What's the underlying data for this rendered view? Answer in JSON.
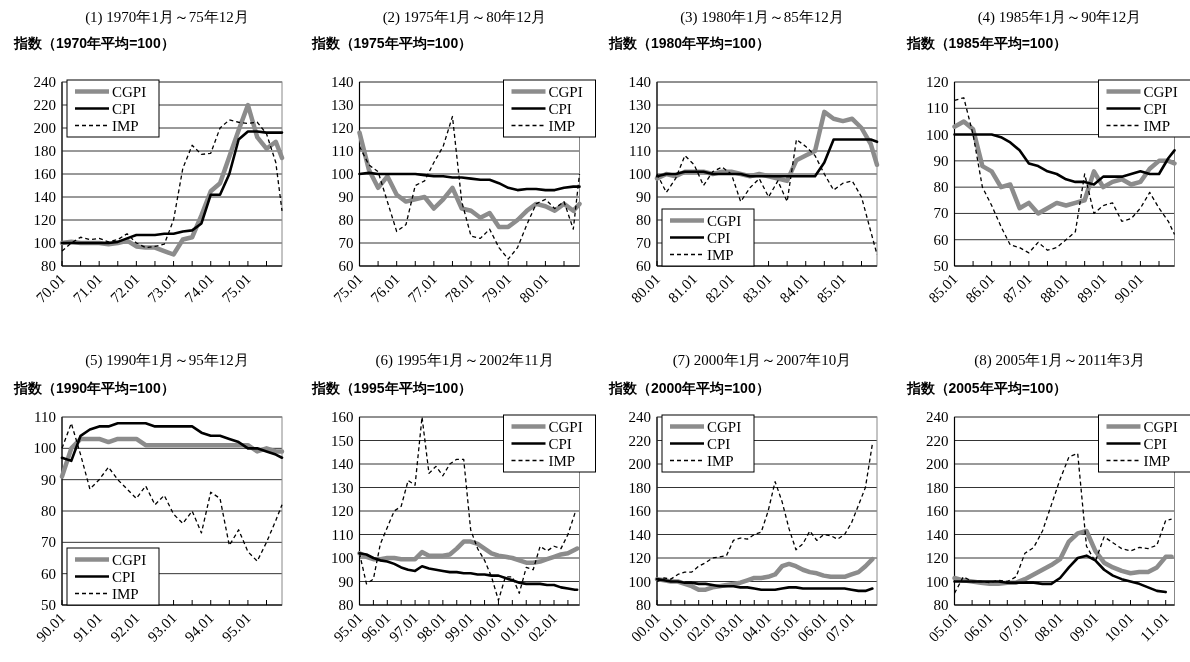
{
  "chart_data": [
    {
      "type": "line",
      "title": "(1) 1970年1月～75年12月",
      "ylabel": "指数（1970年平均=100）",
      "legend": "top left",
      "grid": "y",
      "x": [
        "1970-01",
        "1970-04",
        "1970-07",
        "1970-10",
        "1971-01",
        "1971-04",
        "1971-07",
        "1971-10",
        "1972-01",
        "1972-04",
        "1972-07",
        "1972-10",
        "1973-01",
        "1973-04",
        "1973-07",
        "1973-10",
        "1974-01",
        "1974-04",
        "1974-07",
        "1974-10",
        "1975-01",
        "1975-04",
        "1975-07",
        "1975-10",
        "1975-12"
      ],
      "xlim": [
        "1970-01",
        "1975-12"
      ],
      "xticks": [
        {
          "value": "1970-01",
          "label": "70.01"
        },
        {
          "value": "1970-07",
          "label": null
        },
        {
          "value": "1971-01",
          "label": "71.01"
        },
        {
          "value": "1971-07",
          "label": null
        },
        {
          "value": "1972-01",
          "label": "72.01"
        },
        {
          "value": "1972-07",
          "label": null
        },
        {
          "value": "1973-01",
          "label": "73.01"
        },
        {
          "value": "1973-07",
          "label": null
        },
        {
          "value": "1974-01",
          "label": "74.01"
        },
        {
          "value": "1974-07",
          "label": null
        },
        {
          "value": "1975-01",
          "label": "75.01"
        },
        {
          "value": "1975-07",
          "label": null
        }
      ],
      "ylim": [
        80,
        240
      ],
      "yticks": [
        80,
        100,
        120,
        140,
        160,
        180,
        200,
        220,
        240
      ],
      "series": [
        {
          "name": "CGPI",
          "color": "#8c8c8c",
          "line_style": "solid",
          "values": [
            100,
            101,
            100,
            100,
            100,
            99,
            100,
            102,
            97,
            96,
            96,
            93,
            90,
            103,
            105,
            124,
            145,
            152,
            175,
            198,
            220,
            192,
            182,
            188,
            174
          ]
        },
        {
          "name": "CPI",
          "color": "#000000",
          "line_style": "solid",
          "values": [
            100,
            100,
            100,
            100,
            100,
            100,
            101,
            104,
            107,
            107,
            107,
            108,
            108,
            110,
            111,
            117,
            142,
            142,
            160,
            190,
            197,
            197,
            196,
            196,
            196
          ]
        },
        {
          "name": "IMP",
          "color": "#000000",
          "line_style": "dashed",
          "values": [
            93,
            100,
            105,
            103,
            104,
            101,
            103,
            108,
            100,
            96,
            97,
            99,
            120,
            165,
            185,
            177,
            178,
            200,
            207,
            205,
            204,
            205,
            195,
            170,
            128
          ]
        }
      ]
    },
    {
      "type": "line",
      "title": "(2) 1975年1月～80年12月",
      "ylabel": "指数（1975年平均=100）",
      "legend": "top right",
      "grid": "y",
      "x": [
        "1975-01",
        "1975-04",
        "1975-07",
        "1975-10",
        "1976-01",
        "1976-04",
        "1976-07",
        "1976-10",
        "1977-01",
        "1977-04",
        "1977-07",
        "1977-10",
        "1978-01",
        "1978-04",
        "1978-07",
        "1978-10",
        "1979-01",
        "1979-04",
        "1979-07",
        "1979-10",
        "1980-01",
        "1980-04",
        "1980-07",
        "1980-10",
        "1980-12"
      ],
      "xlim": [
        "1975-01",
        "1980-12"
      ],
      "xticks": [
        {
          "value": "1975-01",
          "label": "75.01"
        },
        {
          "value": "1975-07",
          "label": null
        },
        {
          "value": "1976-01",
          "label": "76.01"
        },
        {
          "value": "1976-07",
          "label": null
        },
        {
          "value": "1977-01",
          "label": "77.01"
        },
        {
          "value": "1977-07",
          "label": null
        },
        {
          "value": "1978-01",
          "label": "78.01"
        },
        {
          "value": "1978-07",
          "label": null
        },
        {
          "value": "1979-01",
          "label": "79.01"
        },
        {
          "value": "1979-07",
          "label": null
        },
        {
          "value": "1980-01",
          "label": "80.01"
        },
        {
          "value": "1980-07",
          "label": null
        }
      ],
      "ylim": [
        60,
        140
      ],
      "yticks": [
        60,
        70,
        80,
        90,
        100,
        110,
        120,
        130,
        140
      ],
      "series": [
        {
          "name": "CGPI",
          "color": "#8c8c8c",
          "line_style": "solid",
          "values": [
            118,
            102,
            94,
            99,
            91,
            88,
            89,
            90,
            85,
            89,
            94,
            85,
            84,
            81,
            83,
            77,
            77,
            80,
            84,
            87,
            86,
            84,
            87,
            84,
            87
          ]
        },
        {
          "name": "CPI",
          "color": "#000000",
          "line_style": "solid",
          "values": [
            100,
            100.5,
            100,
            100,
            100,
            100,
            100,
            99.5,
            99,
            99,
            98.5,
            98.5,
            98,
            97.5,
            97.5,
            96,
            94,
            93,
            93.5,
            93.5,
            93,
            93,
            94,
            94.5,
            94.5
          ]
        },
        {
          "name": "IMP",
          "color": "#000000",
          "line_style": "dashed",
          "values": [
            112,
            104,
            101,
            88,
            75,
            78,
            95,
            97,
            105,
            112,
            125,
            88,
            73,
            72,
            76,
            68,
            63,
            68,
            78,
            87,
            89,
            85,
            88,
            76,
            100
          ]
        }
      ]
    },
    {
      "type": "line",
      "title": "(3) 1980年1月～85年12月",
      "ylabel": "指数（1980年平均=100）",
      "legend": "bottom left",
      "grid": "y",
      "x": [
        "1980-01",
        "1980-04",
        "1980-07",
        "1980-10",
        "1981-01",
        "1981-04",
        "1981-07",
        "1981-10",
        "1982-01",
        "1982-04",
        "1982-07",
        "1982-10",
        "1983-01",
        "1983-04",
        "1983-07",
        "1983-10",
        "1984-01",
        "1984-04",
        "1984-07",
        "1984-10",
        "1985-01",
        "1985-04",
        "1985-07",
        "1985-10",
        "1985-12"
      ],
      "xlim": [
        "1980-01",
        "1985-12"
      ],
      "xticks": [
        {
          "value": "1980-01",
          "label": "80.01"
        },
        {
          "value": "1980-07",
          "label": null
        },
        {
          "value": "1981-01",
          "label": "81.01"
        },
        {
          "value": "1981-07",
          "label": null
        },
        {
          "value": "1982-01",
          "label": "82.01"
        },
        {
          "value": "1982-07",
          "label": null
        },
        {
          "value": "1983-01",
          "label": "83.01"
        },
        {
          "value": "1983-07",
          "label": null
        },
        {
          "value": "1984-01",
          "label": "84.01"
        },
        {
          "value": "1984-07",
          "label": null
        },
        {
          "value": "1985-01",
          "label": "85.01"
        },
        {
          "value": "1985-07",
          "label": null
        }
      ],
      "ylim": [
        60,
        140
      ],
      "yticks": [
        60,
        70,
        80,
        90,
        100,
        110,
        120,
        130,
        140
      ],
      "series": [
        {
          "name": "CGPI",
          "color": "#8c8c8c",
          "line_style": "solid",
          "values": [
            98,
            100,
            99,
            101,
            101,
            101,
            100,
            101,
            101,
            100,
            99,
            100,
            99,
            98,
            97,
            106,
            108,
            110,
            127,
            124,
            123,
            124,
            120,
            113,
            104
          ]
        },
        {
          "name": "CPI",
          "color": "#000000",
          "line_style": "solid",
          "values": [
            99,
            100,
            100,
            101,
            101,
            101,
            100,
            100,
            100,
            100,
            99,
            99,
            99,
            99,
            99,
            99,
            99,
            99,
            105,
            115,
            115,
            115,
            115,
            115,
            114
          ]
        },
        {
          "name": "IMP",
          "color": "#000000",
          "line_style": "dashed",
          "values": [
            100,
            92,
            98,
            108,
            104,
            95,
            101,
            103,
            100,
            88,
            94,
            98,
            90,
            97,
            88,
            115,
            112,
            108,
            100,
            93,
            96,
            97,
            90,
            75,
            65
          ]
        }
      ]
    },
    {
      "type": "line",
      "title": "(4) 1985年1月～90年12月",
      "ylabel": "指数（1985年平均=100）",
      "legend": "top right",
      "grid": "y",
      "x": [
        "1985-01",
        "1985-04",
        "1985-07",
        "1985-10",
        "1986-01",
        "1986-04",
        "1986-07",
        "1986-10",
        "1987-01",
        "1987-04",
        "1987-07",
        "1987-10",
        "1988-01",
        "1988-04",
        "1988-07",
        "1988-10",
        "1989-01",
        "1989-04",
        "1989-07",
        "1989-10",
        "1990-01",
        "1990-04",
        "1990-07",
        "1990-10",
        "1990-12"
      ],
      "xlim": [
        "1985-01",
        "1990-12"
      ],
      "xticks": [
        {
          "value": "1985-01",
          "label": "85.01"
        },
        {
          "value": "1985-07",
          "label": null
        },
        {
          "value": "1986-01",
          "label": "86.01"
        },
        {
          "value": "1986-07",
          "label": null
        },
        {
          "value": "1987-01",
          "label": "87.01"
        },
        {
          "value": "1987-07",
          "label": null
        },
        {
          "value": "1988-01",
          "label": "88.01"
        },
        {
          "value": "1988-07",
          "label": null
        },
        {
          "value": "1989-01",
          "label": "89.01"
        },
        {
          "value": "1989-07",
          "label": null
        },
        {
          "value": "1990-01",
          "label": "90.01"
        },
        {
          "value": "1990-07",
          "label": null
        }
      ],
      "ylim": [
        50,
        120
      ],
      "yticks": [
        50,
        60,
        70,
        80,
        90,
        100,
        110,
        120
      ],
      "series": [
        {
          "name": "CGPI",
          "color": "#8c8c8c",
          "line_style": "solid",
          "values": [
            103,
            105,
            102,
            88,
            86,
            80,
            81,
            72,
            74,
            70,
            72,
            74,
            73,
            74,
            75,
            86,
            80,
            82,
            83,
            81,
            82,
            87,
            90,
            90,
            89
          ]
        },
        {
          "name": "CPI",
          "color": "#000000",
          "line_style": "solid",
          "values": [
            100,
            100,
            100,
            100,
            100,
            99,
            97,
            94,
            89,
            88,
            86,
            85,
            83,
            82,
            82,
            81,
            84,
            84,
            84,
            85,
            86,
            85,
            85,
            91,
            94
          ]
        },
        {
          "name": "IMP",
          "color": "#000000",
          "line_style": "dashed",
          "values": [
            113,
            114,
            100,
            80,
            73,
            65,
            58,
            57,
            55,
            59,
            56,
            57,
            60,
            63,
            85,
            70,
            73,
            74,
            67,
            68,
            72,
            78,
            72,
            67,
            62
          ]
        }
      ]
    },
    {
      "type": "line",
      "title": "(5) 1990年1月～95年12月",
      "ylabel": "指数（1990年平均=100）",
      "legend": "bottom left",
      "grid": "y",
      "x": [
        "1990-01",
        "1990-04",
        "1990-07",
        "1990-10",
        "1991-01",
        "1991-04",
        "1991-07",
        "1991-10",
        "1992-01",
        "1992-04",
        "1992-07",
        "1992-10",
        "1993-01",
        "1993-04",
        "1993-07",
        "1993-10",
        "1994-01",
        "1994-04",
        "1994-07",
        "1994-10",
        "1995-01",
        "1995-04",
        "1995-07",
        "1995-10",
        "1995-12"
      ],
      "xlim": [
        "1990-01",
        "1995-12"
      ],
      "xticks": [
        {
          "value": "1990-01",
          "label": "90.01"
        },
        {
          "value": "1990-07",
          "label": null
        },
        {
          "value": "1991-01",
          "label": "91.01"
        },
        {
          "value": "1991-07",
          "label": null
        },
        {
          "value": "1992-01",
          "label": "92.01"
        },
        {
          "value": "1992-07",
          "label": null
        },
        {
          "value": "1993-01",
          "label": "93.01"
        },
        {
          "value": "1993-07",
          "label": null
        },
        {
          "value": "1994-01",
          "label": "94.01"
        },
        {
          "value": "1994-07",
          "label": null
        },
        {
          "value": "1995-01",
          "label": "95.01"
        },
        {
          "value": "1995-07",
          "label": null
        }
      ],
      "ylim": [
        50,
        110
      ],
      "yticks": [
        50,
        60,
        70,
        80,
        90,
        100,
        110
      ],
      "series": [
        {
          "name": "CGPI",
          "color": "#8c8c8c",
          "line_style": "solid",
          "values": [
            91,
            100,
            103,
            103,
            103,
            102,
            103,
            103,
            103,
            101,
            101,
            101,
            101,
            101,
            101,
            101,
            101,
            101,
            101,
            101,
            101,
            99,
            100,
            99,
            99
          ]
        },
        {
          "name": "CPI",
          "color": "#000000",
          "line_style": "solid",
          "values": [
            97,
            96,
            104,
            106,
            107,
            107,
            108,
            108,
            108,
            108,
            107,
            107,
            107,
            107,
            107,
            105,
            104,
            104,
            103,
            102,
            100,
            100,
            99,
            98,
            97
          ]
        },
        {
          "name": "IMP",
          "color": "#000000",
          "line_style": "dashed",
          "values": [
            100,
            108,
            98,
            87,
            90,
            94,
            90,
            87,
            84,
            88,
            82,
            85,
            79,
            76,
            80,
            73,
            86,
            84,
            69,
            74,
            67,
            64,
            70,
            77,
            82
          ]
        }
      ]
    },
    {
      "type": "line",
      "title": "(6) 1995年1月～2002年11月",
      "ylabel": "指数（1995年平均=100）",
      "legend": "top right",
      "grid": "y",
      "x": [
        "1995-01",
        "1995-04",
        "1995-07",
        "1995-10",
        "1996-01",
        "1996-04",
        "1996-07",
        "1996-10",
        "1997-01",
        "1997-04",
        "1997-07",
        "1997-10",
        "1998-01",
        "1998-04",
        "1998-07",
        "1998-10",
        "1999-01",
        "1999-04",
        "1999-07",
        "1999-10",
        "2000-01",
        "2000-04",
        "2000-07",
        "2000-10",
        "2001-01",
        "2001-04",
        "2001-07",
        "2001-10",
        "2002-01",
        "2002-04",
        "2002-07",
        "2002-10",
        "2002-11"
      ],
      "xlim": [
        "1995-01",
        "2002-12"
      ],
      "xticks": [
        {
          "value": "1995-01",
          "label": "95.01"
        },
        {
          "value": "1995-07",
          "label": null
        },
        {
          "value": "1996-01",
          "label": "96.01"
        },
        {
          "value": "1996-07",
          "label": null
        },
        {
          "value": "1997-01",
          "label": "97.01"
        },
        {
          "value": "1997-07",
          "label": null
        },
        {
          "value": "1998-01",
          "label": "98.01"
        },
        {
          "value": "1998-07",
          "label": null
        },
        {
          "value": "1999-01",
          "label": "99.01"
        },
        {
          "value": "1999-07",
          "label": null
        },
        {
          "value": "2000-01",
          "label": "00.01"
        },
        {
          "value": "2000-07",
          "label": null
        },
        {
          "value": "2001-01",
          "label": "01.01"
        },
        {
          "value": "2001-07",
          "label": null
        },
        {
          "value": "2002-01",
          "label": "02.01"
        },
        {
          "value": "2002-07",
          "label": null
        }
      ],
      "ylim": [
        80,
        160
      ],
      "yticks": [
        80,
        90,
        100,
        110,
        120,
        130,
        140,
        150,
        160
      ],
      "series": [
        {
          "name": "CGPI",
          "color": "#8c8c8c",
          "line_style": "solid",
          "values": [
            102,
            100.5,
            99.5,
            99.5,
            100,
            100,
            99.5,
            99.5,
            99.5,
            102.5,
            101,
            101,
            101,
            101.5,
            104,
            107,
            107,
            106,
            104,
            102,
            101,
            100.5,
            100,
            99,
            98,
            98,
            98.5,
            99.5,
            100.5,
            101.5,
            102,
            103.5,
            104
          ]
        },
        {
          "name": "CPI",
          "color": "#000000",
          "line_style": "solid",
          "values": [
            102,
            101.5,
            100,
            99,
            98.5,
            97.5,
            96,
            95,
            94.5,
            96.5,
            95.5,
            95,
            94.5,
            94,
            94,
            93.5,
            93.5,
            93,
            93,
            92.5,
            92.5,
            91.5,
            90.5,
            89.5,
            89,
            89,
            89,
            88.5,
            88.5,
            87.5,
            87,
            86.5,
            86.5
          ]
        },
        {
          "name": "IMP",
          "color": "#000000",
          "line_style": "dashed",
          "values": [
            102,
            89,
            91,
            106,
            113,
            120,
            122,
            133,
            131,
            160,
            136,
            139,
            135,
            140,
            142,
            142,
            112,
            104,
            99,
            92,
            82,
            92,
            92,
            85,
            96,
            95,
            105,
            103,
            105,
            104,
            110,
            119,
            118
          ]
        }
      ]
    },
    {
      "type": "line",
      "title": "(7) 2000年1月～2007年10月",
      "ylabel": "指数（2000年平均=100）",
      "legend": "top left",
      "grid": "y",
      "x": [
        "2000-01",
        "2000-04",
        "2000-07",
        "2000-10",
        "2001-01",
        "2001-04",
        "2001-07",
        "2001-10",
        "2002-01",
        "2002-04",
        "2002-07",
        "2002-10",
        "2003-01",
        "2003-04",
        "2003-07",
        "2003-10",
        "2004-01",
        "2004-04",
        "2004-07",
        "2004-10",
        "2005-01",
        "2005-04",
        "2005-07",
        "2005-10",
        "2006-01",
        "2006-04",
        "2006-07",
        "2006-10",
        "2007-01",
        "2007-04",
        "2007-07",
        "2007-10"
      ],
      "xlim": [
        "2000-01",
        "2007-12"
      ],
      "xticks": [
        {
          "value": "2000-01",
          "label": "00.01"
        },
        {
          "value": "2000-07",
          "label": null
        },
        {
          "value": "2001-01",
          "label": "01.01"
        },
        {
          "value": "2001-07",
          "label": null
        },
        {
          "value": "2002-01",
          "label": "02.01"
        },
        {
          "value": "2002-07",
          "label": null
        },
        {
          "value": "2003-01",
          "label": "03.01"
        },
        {
          "value": "2003-07",
          "label": null
        },
        {
          "value": "2004-01",
          "label": "04.01"
        },
        {
          "value": "2004-07",
          "label": null
        },
        {
          "value": "2005-01",
          "label": "05.01"
        },
        {
          "value": "2005-07",
          "label": null
        },
        {
          "value": "2006-01",
          "label": "06.01"
        },
        {
          "value": "2006-07",
          "label": null
        },
        {
          "value": "2007-01",
          "label": "07.01"
        },
        {
          "value": "2007-07",
          "label": null
        }
      ],
      "ylim": [
        80,
        240
      ],
      "yticks": [
        80,
        100,
        120,
        140,
        160,
        180,
        200,
        220,
        240
      ],
      "series": [
        {
          "name": "CGPI",
          "color": "#8c8c8c",
          "line_style": "solid",
          "values": [
            102,
            101,
            100,
            100,
            98,
            96,
            93,
            93,
            95,
            96,
            97,
            98,
            99,
            101,
            103,
            103,
            104,
            106,
            113,
            115,
            113,
            110,
            108,
            107,
            105,
            104,
            104,
            104,
            106,
            108,
            113,
            119
          ]
        },
        {
          "name": "CPI",
          "color": "#000000",
          "line_style": "solid",
          "values": [
            102,
            101,
            100,
            100,
            99,
            99,
            98,
            98,
            97,
            96,
            96,
            96,
            95,
            95,
            94,
            93,
            93,
            93,
            94,
            95,
            95,
            94,
            94,
            94,
            94,
            94,
            94,
            94,
            93,
            92,
            92,
            94
          ]
        },
        {
          "name": "IMP",
          "color": "#000000",
          "line_style": "dashed",
          "values": [
            100,
            103,
            102,
            106,
            108,
            108,
            113,
            116,
            120,
            121,
            122,
            135,
            137,
            136,
            140,
            142,
            160,
            185,
            168,
            145,
            127,
            132,
            143,
            135,
            140,
            139,
            136,
            140,
            150,
            165,
            180,
            217
          ]
        }
      ]
    },
    {
      "type": "line",
      "title": "(8) 2005年1月～2011年3月",
      "ylabel": "指数（2005年平均=100）",
      "legend": "top right",
      "grid": "y",
      "x": [
        "2005-01",
        "2005-04",
        "2005-07",
        "2005-10",
        "2006-01",
        "2006-04",
        "2006-07",
        "2006-10",
        "2007-01",
        "2007-04",
        "2007-07",
        "2007-10",
        "2008-01",
        "2008-04",
        "2008-07",
        "2008-10",
        "2009-01",
        "2009-04",
        "2009-07",
        "2009-10",
        "2010-01",
        "2010-04",
        "2010-07",
        "2010-10",
        "2011-01",
        "2011-03"
      ],
      "xlim": [
        "2005-01",
        "2011-04"
      ],
      "xticks": [
        {
          "value": "2005-01",
          "label": "05.01"
        },
        {
          "value": "2005-07",
          "label": null
        },
        {
          "value": "2006-01",
          "label": "06.01"
        },
        {
          "value": "2006-07",
          "label": null
        },
        {
          "value": "2007-01",
          "label": "07.01"
        },
        {
          "value": "2007-07",
          "label": null
        },
        {
          "value": "2008-01",
          "label": "08.01"
        },
        {
          "value": "2008-07",
          "label": null
        },
        {
          "value": "2009-01",
          "label": "09.01"
        },
        {
          "value": "2009-07",
          "label": null
        },
        {
          "value": "2010-01",
          "label": "10.01"
        },
        {
          "value": "2010-07",
          "label": null
        },
        {
          "value": "2011-01",
          "label": "11.01"
        }
      ],
      "ylim": [
        80,
        240
      ],
      "yticks": [
        80,
        100,
        120,
        140,
        160,
        180,
        200,
        220,
        240
      ],
      "series": [
        {
          "name": "CGPI",
          "color": "#8c8c8c",
          "line_style": "solid",
          "values": [
            103,
            101,
            100,
            99,
            98,
            98,
            99,
            99,
            102,
            106,
            110,
            114,
            119,
            134,
            141,
            143,
            126,
            116,
            112,
            109,
            107,
            108,
            108,
            112,
            121,
            121
          ]
        },
        {
          "name": "CPI",
          "color": "#000000",
          "line_style": "solid",
          "values": [
            100,
            100,
            100,
            100,
            100,
            100,
            99,
            99,
            99,
            99,
            98,
            98,
            103,
            112,
            120,
            122,
            118,
            110,
            105,
            102,
            100,
            98,
            95,
            92,
            91,
            null
          ]
        },
        {
          "name": "IMP",
          "color": "#000000",
          "line_style": "dashed",
          "values": [
            90,
            104,
            100,
            100,
            99,
            101,
            100,
            104,
            124,
            129,
            143,
            165,
            187,
            206,
            209,
            130,
            117,
            138,
            133,
            128,
            126,
            129,
            128,
            131,
            152,
            153
          ]
        }
      ]
    }
  ]
}
